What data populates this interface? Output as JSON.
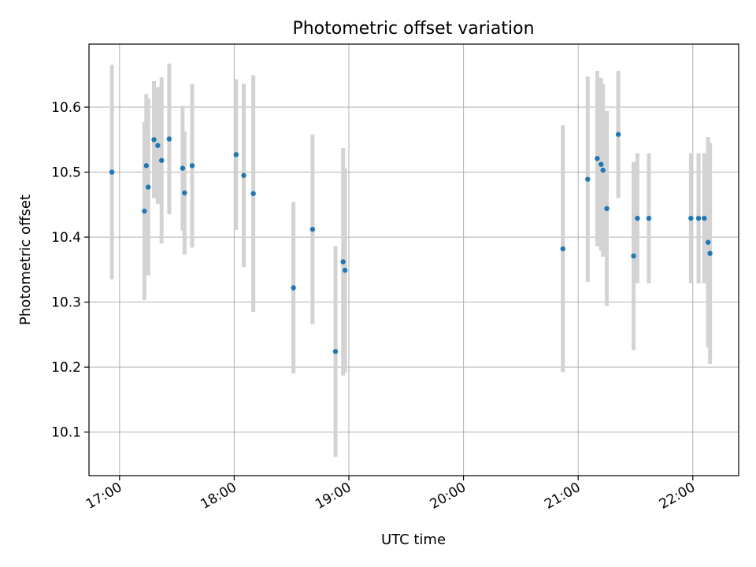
{
  "chart_data": {
    "type": "scatter",
    "title": "Photometric offset variation",
    "xlabel": "UTC time",
    "ylabel": "Photometric offset",
    "x_unit": "UTC HH:MM",
    "xlim": [
      "16:44",
      "22:24"
    ],
    "ylim": [
      10.033,
      10.697
    ],
    "grid": true,
    "x_ticks": [
      "17:00",
      "18:00",
      "19:00",
      "20:00",
      "21:00",
      "22:00"
    ],
    "y_ticks": [
      10.1,
      10.2,
      10.3,
      10.4,
      10.5,
      10.6
    ],
    "colors": {
      "points": "#1f77b4",
      "errorbars": "#d3d3d3",
      "grid": "#b0b0b0"
    },
    "points": [
      {
        "x": "16:56",
        "y": 10.5,
        "err": 0.165
      },
      {
        "x": "17:13",
        "y": 10.44,
        "err": 0.137
      },
      {
        "x": "17:14",
        "y": 10.51,
        "err": 0.11
      },
      {
        "x": "17:15",
        "y": 10.477,
        "err": 0.136
      },
      {
        "x": "17:18",
        "y": 10.55,
        "err": 0.09
      },
      {
        "x": "17:20",
        "y": 10.541,
        "err": 0.09
      },
      {
        "x": "17:22",
        "y": 10.518,
        "err": 0.128
      },
      {
        "x": "17:26",
        "y": 10.551,
        "err": 0.116
      },
      {
        "x": "17:33",
        "y": 10.506,
        "err": 0.096
      },
      {
        "x": "17:34",
        "y": 10.468,
        "err": 0.095
      },
      {
        "x": "17:38",
        "y": 10.51,
        "err": 0.126
      },
      {
        "x": "18:01",
        "y": 10.527,
        "err": 0.116
      },
      {
        "x": "18:05",
        "y": 10.495,
        "err": 0.141
      },
      {
        "x": "18:10",
        "y": 10.467,
        "err": 0.182
      },
      {
        "x": "18:31",
        "y": 10.322,
        "err": 0.132
      },
      {
        "x": "18:41",
        "y": 10.412,
        "err": 0.146
      },
      {
        "x": "18:53",
        "y": 10.224,
        "err": 0.162
      },
      {
        "x": "18:57",
        "y": 10.362,
        "err": 0.175
      },
      {
        "x": "18:58",
        "y": 10.349,
        "err": 0.157
      },
      {
        "x": "20:52",
        "y": 10.382,
        "err": 0.19
      },
      {
        "x": "21:05",
        "y": 10.489,
        "err": 0.158
      },
      {
        "x": "21:10",
        "y": 10.521,
        "err": 0.135
      },
      {
        "x": "21:12",
        "y": 10.512,
        "err": 0.133
      },
      {
        "x": "21:13",
        "y": 10.503,
        "err": 0.133
      },
      {
        "x": "21:15",
        "y": 10.444,
        "err": 0.15
      },
      {
        "x": "21:21",
        "y": 10.558,
        "err": 0.098
      },
      {
        "x": "21:29",
        "y": 10.371,
        "err": 0.145
      },
      {
        "x": "21:31",
        "y": 10.429,
        "err": 0.1
      },
      {
        "x": "21:37",
        "y": 10.429,
        "err": 0.1
      },
      {
        "x": "21:59",
        "y": 10.429,
        "err": 0.1
      },
      {
        "x": "22:03",
        "y": 10.429,
        "err": 0.1
      },
      {
        "x": "22:06",
        "y": 10.429,
        "err": 0.1
      },
      {
        "x": "22:08",
        "y": 10.392,
        "err": 0.162
      },
      {
        "x": "22:09",
        "y": 10.375,
        "err": 0.17
      }
    ]
  }
}
